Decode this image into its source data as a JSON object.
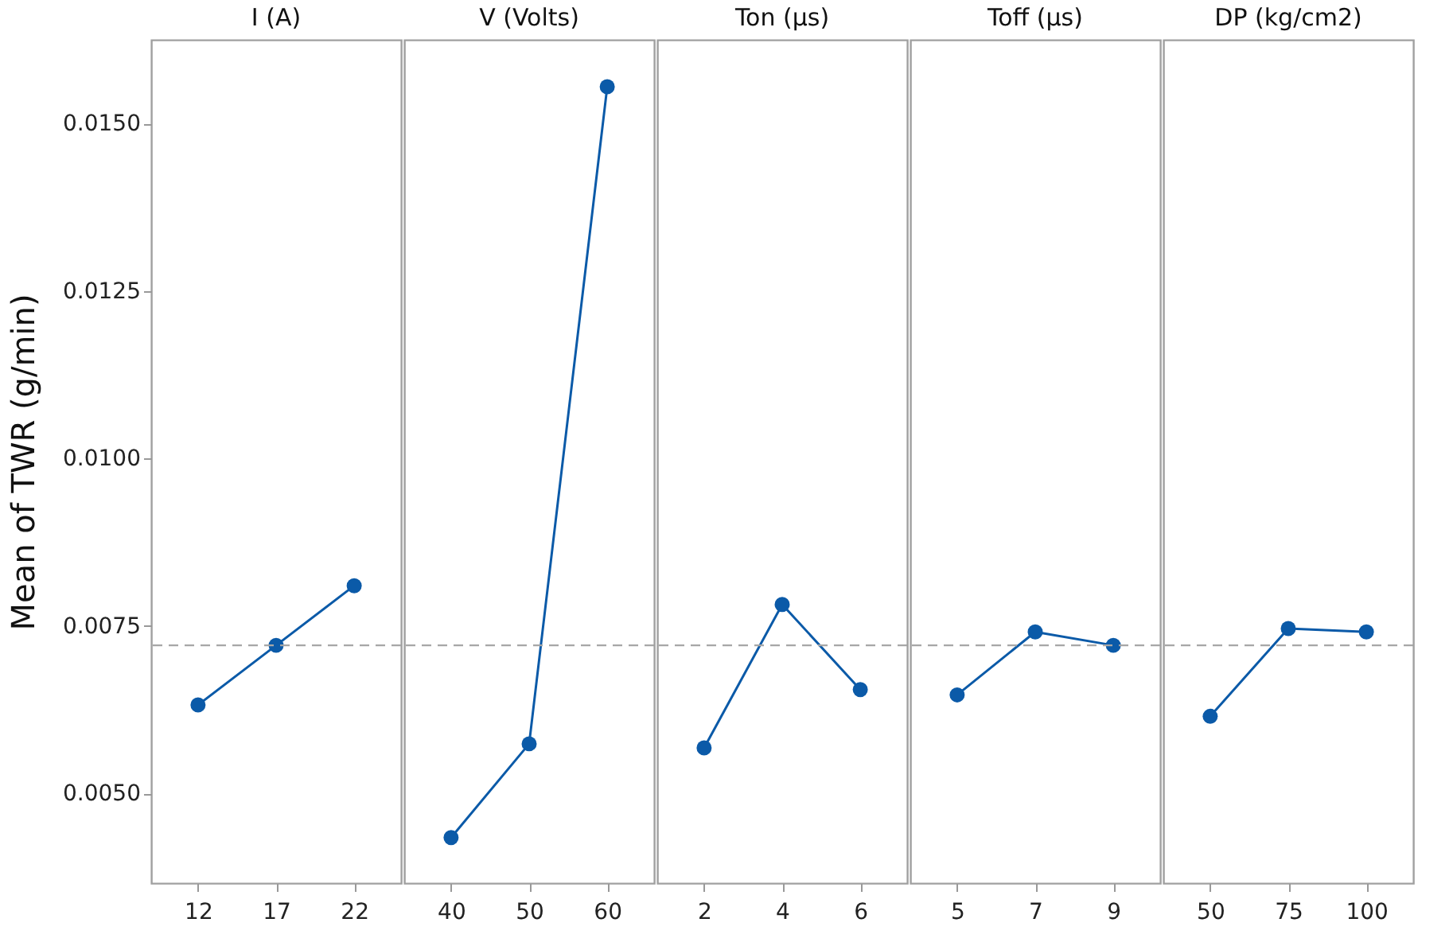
{
  "chart_data": [
    {
      "type": "line",
      "title": "I (A)",
      "ylabel": "Mean of TWR (g/min)",
      "categories": [
        "12",
        "17",
        "22"
      ],
      "series": [
        {
          "color": "#0b5aa8",
          "values": [
            0.00632,
            0.00721,
            0.0081
          ]
        }
      ],
      "ylim": [
        0.00366,
        0.01625
      ],
      "yticks": [
        {
          "value": 0.005,
          "label": "0.0050"
        },
        0.0075,
        {
          "value": 0.01,
          "label": "0.0100"
        },
        0.0125,
        {
          "value": 0.015,
          "label": "0.0150"
        }
      ],
      "ref_lines": [
        {
          "axis": "y",
          "value": 0.00721,
          "color": "#a6a6a6",
          "line_style": "dashed"
        }
      ],
      "marker": "circle"
    },
    {
      "type": "line",
      "title": "V (Volts)",
      "categories": [
        "40",
        "50",
        "60"
      ],
      "series": [
        {
          "color": "#0b5aa8",
          "values": [
            0.00434,
            0.00574,
            0.01555
          ]
        }
      ],
      "ylim": [
        0.00366,
        0.01625
      ],
      "tick_labels": "x",
      "ref_lines": [
        {
          "axis": "y",
          "value": 0.00721,
          "color": "#a6a6a6",
          "line_style": "dashed"
        }
      ],
      "marker": "circle"
    },
    {
      "type": "line",
      "title": "Ton (µs)",
      "categories": [
        "2",
        "4",
        "6"
      ],
      "series": [
        {
          "color": "#0b5aa8",
          "values": [
            0.00568,
            0.00782,
            0.00655
          ]
        }
      ],
      "ylim": [
        0.00366,
        0.01625
      ],
      "tick_labels": "x",
      "ref_lines": [
        {
          "axis": "y",
          "value": 0.00721,
          "color": "#a6a6a6",
          "line_style": "dashed"
        }
      ],
      "marker": "circle"
    },
    {
      "type": "line",
      "title": "Toff (µs)",
      "categories": [
        "5",
        "7",
        "9"
      ],
      "series": [
        {
          "color": "#0b5aa8",
          "values": [
            0.00647,
            0.00741,
            0.00721
          ]
        }
      ],
      "ylim": [
        0.00366,
        0.01625
      ],
      "tick_labels": "x",
      "ref_lines": [
        {
          "axis": "y",
          "value": 0.00721,
          "color": "#a6a6a6",
          "line_style": "dashed"
        }
      ],
      "marker": "circle"
    },
    {
      "type": "line",
      "title": "DP (kg/cm2)",
      "categories": [
        "50",
        "75",
        "100"
      ],
      "series": [
        {
          "color": "#0b5aa8",
          "values": [
            0.00615,
            0.00746,
            0.00741
          ]
        }
      ],
      "ylim": [
        0.00366,
        0.01625
      ],
      "tick_labels": "x",
      "ref_lines": [
        {
          "axis": "y",
          "value": 0.00721,
          "color": "#a6a6a6",
          "line_style": "dashed"
        }
      ],
      "marker": "circle"
    }
  ]
}
